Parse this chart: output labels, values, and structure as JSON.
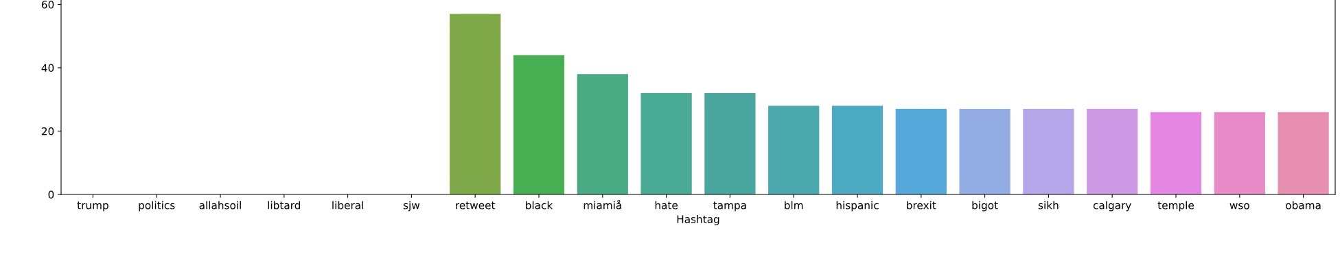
{
  "chart_data": {
    "type": "bar",
    "xlabel": "Hashtag",
    "categories": [
      "trump",
      "politics",
      "allahsoil",
      "libtard",
      "liberal",
      "sjw",
      "retweet",
      "black",
      "miamiå",
      "hate",
      "tampa",
      "blm",
      "hispanic",
      "brexit",
      "bigot",
      "sikh",
      "calgary",
      "temple",
      "wso",
      "obama"
    ],
    "values": [
      null,
      null,
      null,
      null,
      null,
      null,
      57,
      44,
      38,
      32,
      32,
      28,
      28,
      27,
      27,
      27,
      27,
      26,
      26,
      26
    ],
    "colors": [
      "#e8959d",
      "#e59580",
      "#d6924c",
      "#bd9b4b",
      "#ab9e47",
      "#98a349",
      "#7fa848",
      "#48ae52",
      "#48ab83",
      "#4aab94",
      "#4aa7a0",
      "#4ba9ae",
      "#4daac3",
      "#55a8da",
      "#93ace4",
      "#b4a6e8",
      "#cd99e4",
      "#e387e2",
      "#e68bc8",
      "#e68fb0"
    ],
    "ylim": [
      0,
      61.4
    ],
    "yticks": [
      0,
      20,
      40,
      60
    ],
    "grid": false
  }
}
